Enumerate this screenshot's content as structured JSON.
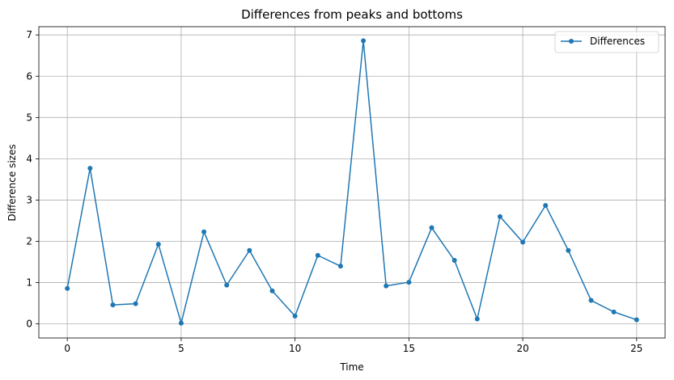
{
  "chart_data": {
    "type": "line",
    "title": "Differences from peaks and bottoms",
    "xlabel": "Time",
    "ylabel": "Difference sizes",
    "xlim": [
      -1.25,
      26.25
    ],
    "ylim": [
      -0.34,
      7.2
    ],
    "xticks": [
      0,
      5,
      10,
      15,
      20,
      25
    ],
    "yticks": [
      0,
      1,
      2,
      3,
      4,
      5,
      6,
      7
    ],
    "grid": true,
    "legend_position": "top-right",
    "series": [
      {
        "name": "Differences",
        "color": "#1f77b4",
        "marker": "circle",
        "x": [
          0,
          1,
          2,
          3,
          4,
          5,
          6,
          7,
          8,
          9,
          10,
          11,
          12,
          13,
          14,
          15,
          16,
          17,
          18,
          19,
          20,
          21,
          22,
          23,
          24,
          25
        ],
        "y": [
          0.86,
          3.77,
          0.46,
          0.49,
          1.93,
          0.02,
          2.23,
          0.94,
          1.78,
          0.8,
          0.19,
          1.66,
          1.4,
          6.86,
          0.92,
          1.01,
          2.33,
          1.54,
          0.12,
          2.6,
          1.98,
          2.87,
          1.78,
          0.57,
          0.29,
          0.1
        ]
      }
    ]
  }
}
